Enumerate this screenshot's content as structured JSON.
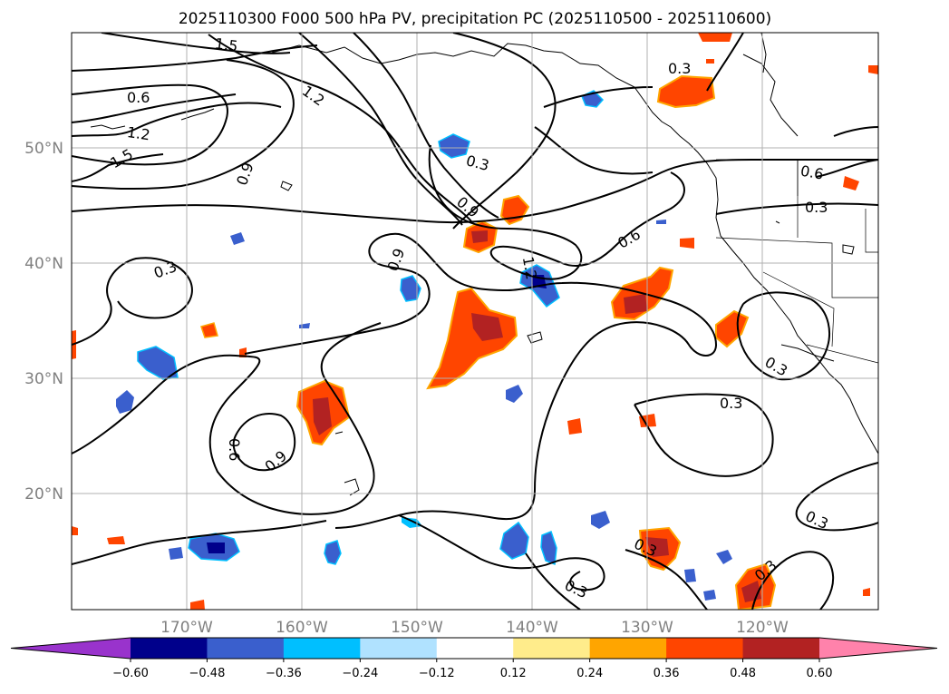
{
  "title": "2025110300 F000 500 hPa PV, precipitation PC (2025110500 - 2025110600)",
  "map": {
    "lon_labels": [
      "170°W",
      "160°W",
      "150°W",
      "140°W",
      "130°W",
      "120°W"
    ],
    "lat_labels": [
      "50°N",
      "40°N",
      "30°N",
      "20°N"
    ],
    "grid": true
  },
  "colorbar": {
    "ticks": [
      "-0.60",
      "-0.48",
      "-0.36",
      "-0.24",
      "-0.12",
      "0.12",
      "0.24",
      "0.36",
      "0.48",
      "0.60"
    ],
    "colors": [
      "#9933cc",
      "#00008b",
      "#3a5fcd",
      "#00bfff",
      "#b0e2ff",
      "#ffffff",
      "#ffec8b",
      "#ffa500",
      "#ff4500",
      "#b22222",
      "#ff82ab"
    ],
    "extend": "both"
  },
  "contour_labels": [
    "1.5",
    "1.2",
    "0.6",
    "1.2",
    "1.5",
    "0.9",
    "0.3",
    "0.9",
    "0.9",
    "1.2",
    "0.3",
    "0.6",
    "0.3",
    "0.6",
    "0.3",
    "0.3",
    "0.3",
    "0.9",
    "0.6",
    "0.3",
    "0.3",
    "0.3",
    "0.3"
  ]
}
